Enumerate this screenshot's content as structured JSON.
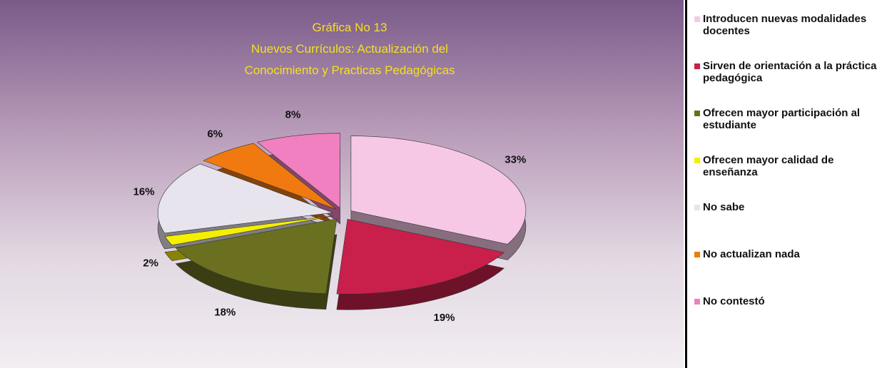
{
  "chart_data": {
    "type": "pie",
    "title": "Gráfica No 13",
    "subtitle": "Nuevos Currículos: Actualización del Conocimiento y Practicas Pedagógicas",
    "categories": [
      "Introducen nuevas modalidades docentes",
      "Sirven de orientación a la práctica pedagógica",
      "Ofrecen mayor participación al estudiante",
      "Ofrecen mayor calidad de enseñanza",
      "No sabe",
      "No actualizan nada",
      "No contestó"
    ],
    "values": [
      33,
      19,
      18,
      2,
      16,
      6,
      8
    ],
    "value_labels": [
      "33%",
      "19%",
      "18%",
      "2%",
      "16%",
      "6%",
      "8%"
    ],
    "colors": [
      "#f6c8e6",
      "#c8204a",
      "#6b7020",
      "#f4f000",
      "#e8e4ee",
      "#f07a10",
      "#f080c0"
    ]
  }
}
